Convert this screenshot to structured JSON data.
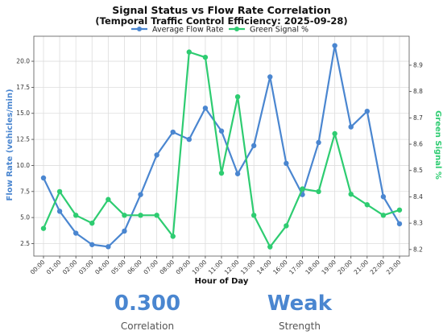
{
  "chart_data": {
    "type": "line",
    "title": "Signal Status vs Flow Rate Correlation",
    "subtitle": "(Temporal Traffic Control Efficiency: 2025-09-28)",
    "xlabel": "Hour of Day",
    "ylabel_left": "Flow Rate (vehicles/min)",
    "ylabel_right": "Green Signal %",
    "categories": [
      "00:00",
      "01:00",
      "02:00",
      "03:00",
      "04:00",
      "05:00",
      "06:00",
      "07:00",
      "08:00",
      "09:00",
      "10:00",
      "11:00",
      "12:00",
      "13:00",
      "14:00",
      "16:00",
      "17:00",
      "18:00",
      "19:00",
      "20:00",
      "21:00",
      "22:00",
      "23:00"
    ],
    "ylim_left": [
      1.3,
      22.4
    ],
    "ylim_right": [
      8.175,
      9.01
    ],
    "yticks_left": [
      "2.5",
      "5.0",
      "7.5",
      "10.0",
      "12.5",
      "15.0",
      "17.5",
      "20.0"
    ],
    "yticks_right": [
      "8.2",
      "8.3",
      "8.4",
      "8.5",
      "8.6",
      "8.7",
      "8.8",
      "8.9"
    ],
    "grid": true,
    "legend_position": "top-center",
    "series": [
      {
        "name": "Average Flow Rate",
        "axis": "left",
        "color": "#4a86d0",
        "values": [
          8.8,
          5.6,
          3.5,
          2.4,
          2.2,
          3.7,
          7.2,
          11.0,
          13.2,
          12.5,
          15.5,
          13.3,
          9.2,
          11.9,
          18.5,
          10.2,
          7.2,
          12.2,
          21.5,
          13.7,
          15.2,
          7.0,
          4.4
        ]
      },
      {
        "name": "Green Signal %",
        "axis": "right",
        "color": "#2ecc71",
        "values": [
          8.28,
          8.42,
          8.33,
          8.3,
          8.39,
          8.33,
          8.33,
          8.33,
          8.25,
          8.95,
          8.93,
          8.49,
          8.78,
          8.33,
          8.21,
          8.29,
          8.43,
          8.42,
          8.64,
          8.41,
          8.37,
          8.33,
          8.35
        ]
      }
    ]
  },
  "stats": {
    "correlation_value": "0.300",
    "correlation_label": "Correlation",
    "strength_value": "Weak",
    "strength_label": "Strength"
  }
}
